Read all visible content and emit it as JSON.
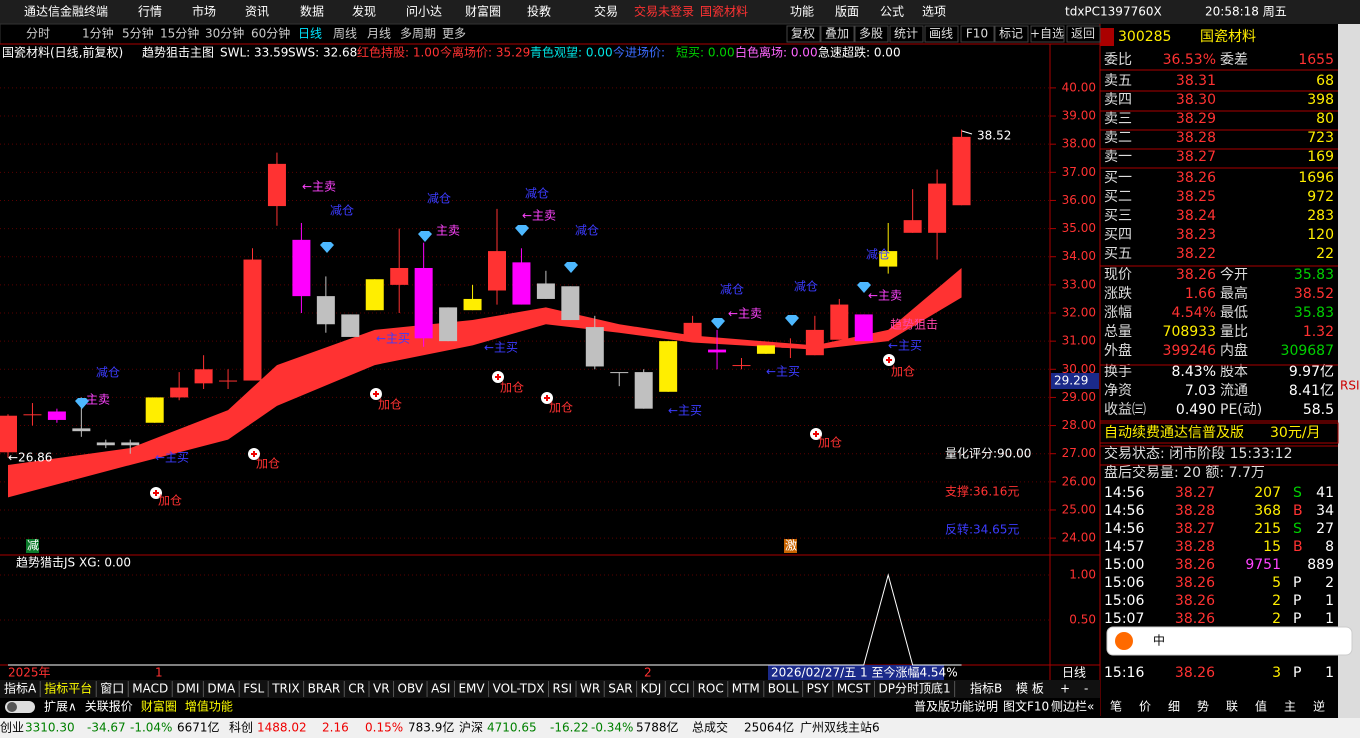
{
  "menubar": {
    "app": "通达信金融终端",
    "menus": [
      "行情",
      "市场",
      "资讯",
      "数据",
      "发现",
      "问小达",
      "财富圈",
      "投教",
      "交易"
    ],
    "alerts": [
      "交易未登录",
      "国瓷材料"
    ],
    "right": [
      "功能",
      "版面",
      "公式",
      "选项"
    ],
    "user": "tdxPC1397760X",
    "time": "20:58:18 周五"
  },
  "toolbar": {
    "periods": [
      "分时",
      "1分钟",
      "5分钟",
      "15分钟",
      "30分钟",
      "60分钟",
      "日线",
      "周线",
      "月线",
      "多周期",
      "更多"
    ],
    "buttons": [
      "复权",
      "叠加",
      "多股",
      "统计",
      "画线",
      "F10",
      "标记",
      "+自选",
      "返回"
    ]
  },
  "chart_info": {
    "stock": "国瓷材料(日线,前复权)",
    "indicator": "趋势狙击主图",
    "items": [
      "SWL: 33.59",
      "SWS: 32.68",
      "红色持股: 1.00",
      "今离场价: 35.29",
      "青色观望: 0.00",
      "今进场价:",
      "短买: 0.00",
      "白色离场: 0.00",
      "急速超跌: 0.00"
    ]
  },
  "chart_data": {
    "type": "candlestick",
    "open": [
      27.05,
      28.4,
      28.2,
      27.9,
      27.4,
      27.4,
      28.1,
      29.0,
      29.5,
      29.6,
      29.6,
      35.8,
      34.6,
      32.6,
      31.95,
      32.1,
      33.0,
      33.6,
      32.2,
      32.1,
      32.8,
      33.8,
      33.05,
      32.95,
      31.5,
      29.9,
      29.9,
      29.2,
      31.0,
      30.6,
      30.15,
      30.55,
      30.8,
      30.5,
      31.05,
      31.0,
      33.65,
      34.85,
      34.85,
      35.83
    ],
    "high": [
      28.4,
      28.8,
      28.6,
      29.0,
      27.5,
      27.5,
      29.0,
      29.9,
      30.5,
      30.0,
      34.3,
      37.7,
      35.2,
      33.3,
      31.95,
      33.2,
      35.0,
      34.5,
      32.2,
      33.0,
      35.7,
      34.3,
      33.5,
      32.95,
      31.9,
      29.9,
      30.0,
      31.0,
      31.9,
      31.4,
      30.4,
      30.85,
      31.1,
      31.9,
      32.5,
      31.95,
      35.2,
      36.4,
      37.1,
      38.52
    ],
    "low": [
      26.86,
      28.0,
      28.1,
      27.6,
      27.2,
      27.0,
      28.1,
      28.9,
      29.3,
      29.3,
      29.6,
      35.1,
      32.0,
      31.3,
      31.15,
      32.1,
      32.0,
      30.8,
      31.0,
      32.1,
      32.3,
      32.3,
      32.5,
      31.75,
      30.0,
      29.4,
      28.6,
      29.2,
      31.0,
      30.0,
      30.0,
      30.55,
      30.4,
      30.5,
      31.05,
      31.0,
      33.4,
      34.85,
      33.9,
      35.83
    ],
    "close": [
      28.35,
      28.4,
      28.5,
      27.8,
      27.3,
      27.3,
      29.0,
      29.35,
      30.0,
      29.6,
      33.9,
      37.3,
      32.6,
      31.6,
      31.15,
      33.2,
      33.6,
      31.1,
      31.0,
      32.5,
      34.2,
      32.3,
      32.5,
      31.75,
      30.1,
      29.9,
      28.6,
      31.0,
      31.65,
      30.7,
      30.15,
      30.85,
      30.8,
      31.4,
      32.3,
      31.95,
      34.2,
      35.3,
      36.6,
      38.26
    ],
    "colors": [
      "#ff3232",
      "#ff3232",
      "#ff00ff",
      "#c0c0c0",
      "#c0c0c0",
      "#c0c0c0",
      "#ffee00",
      "#ff3232",
      "#ff3232",
      "#ff3232",
      "#ff3232",
      "#ff3232",
      "#ff00ff",
      "#c0c0c0",
      "#c0c0c0",
      "#ffee00",
      "#ff3232",
      "#ff00ff",
      "#c0c0c0",
      "#ffee00",
      "#ff3232",
      "#ff00ff",
      "#c0c0c0",
      "#c0c0c0",
      "#c0c0c0",
      "#c0c0c0",
      "#c0c0c0",
      "#ffee00",
      "#ff3232",
      "#ff00ff",
      "#ff3232",
      "#ffee00",
      "#ff3232",
      "#ff3232",
      "#ff3232",
      "#ff00ff",
      "#ffee00",
      "#ff3232",
      "#ff3232",
      "#ff3232"
    ],
    "band": {
      "color": "#ff3232",
      "x": [
        0,
        5,
        9,
        11,
        15,
        19,
        22,
        25,
        28,
        33,
        36,
        39
      ],
      "upper": [
        26.6,
        27.2,
        28.55,
        30.15,
        31.4,
        31.75,
        32.2,
        31.6,
        31.2,
        30.85,
        31.4,
        33.6
      ],
      "lower": [
        25.45,
        26.6,
        27.5,
        28.7,
        30.15,
        30.85,
        31.6,
        31.3,
        30.95,
        30.7,
        31.0,
        32.55
      ]
    },
    "ylim": [
      23.4,
      41.56
    ],
    "yticks": [
      {
        "value": 40,
        "label": "40.00"
      },
      {
        "value": 39,
        "label": "39.00"
      },
      {
        "value": 38,
        "label": "38.00"
      },
      {
        "value": 37,
        "label": "37.00"
      },
      {
        "value": 36,
        "label": "36.00"
      },
      {
        "value": 35,
        "label": "35.00"
      },
      {
        "value": 34,
        "label": "34.00"
      },
      {
        "value": 33,
        "label": "33.00"
      },
      {
        "value": 32,
        "label": "32.00"
      },
      {
        "value": 31,
        "label": "31.00"
      },
      {
        "value": 30,
        "label": "30.00"
      },
      {
        "value": 29,
        "label": "29.00"
      },
      {
        "value": 28,
        "label": "28.00"
      },
      {
        "value": 27,
        "label": "27.00"
      },
      {
        "value": 26,
        "label": "26.00"
      },
      {
        "value": 25,
        "label": "25.00"
      },
      {
        "value": 24,
        "label": "24.00"
      }
    ],
    "grid": true,
    "cursor_label": "29.29",
    "annotations": [
      "减仓",
      "主卖",
      "←主买",
      "加仓",
      "←26.86",
      "加仓",
      "←主卖",
      "减仓",
      "←主买",
      "加仓",
      "减仓",
      "主卖",
      "←主买",
      "加仓",
      "减仓",
      "←主卖",
      "减仓",
      "加仓",
      "←主买",
      "←主卖",
      "减仓",
      "←主买",
      "减仓",
      "加仓",
      "减仓",
      "←主卖",
      "←主买",
      "趋势狙击",
      "加仓",
      "38.52",
      "量化评分:90.00",
      "支撑:36.16元",
      "反转:34.65元"
    ],
    "flags": [
      "减",
      "激"
    ],
    "xlabels": [
      "2025年",
      "1",
      "2"
    ],
    "xinfo": "2026/02/27/五 1 至今涨幅4.54%",
    "period": "日线",
    "indicator": {
      "title": "趋势猎击JS XG: 0.00",
      "values": [
        0,
        0,
        0,
        0,
        0,
        0,
        0,
        0,
        0,
        0,
        0,
        0,
        0,
        0,
        0,
        0,
        0,
        0,
        0,
        0,
        0,
        0,
        0,
        0,
        0,
        0,
        0,
        0,
        0,
        0,
        0,
        0,
        0,
        0,
        0,
        0,
        1,
        0,
        0,
        0
      ],
      "ylim": [
        0,
        1.2
      ],
      "yticks": [
        {
          "value": 1,
          "label": "1.00"
        },
        {
          "value": 0.5,
          "label": "0.50"
        }
      ]
    }
  },
  "quote": {
    "code": "300285",
    "name": "国瓷材料",
    "ratio": [
      "委比",
      "36.53%",
      "委差",
      "1655"
    ],
    "asks": [
      [
        "卖五",
        "38.31",
        "68"
      ],
      [
        "卖四",
        "38.30",
        "398"
      ],
      [
        "卖三",
        "38.29",
        "80"
      ],
      [
        "卖二",
        "38.28",
        "723"
      ],
      [
        "卖一",
        "38.27",
        "169"
      ]
    ],
    "bids": [
      [
        "买一",
        "38.26",
        "1696"
      ],
      [
        "买二",
        "38.25",
        "972"
      ],
      [
        "买三",
        "38.24",
        "283"
      ],
      [
        "买四",
        "38.23",
        "120"
      ],
      [
        "买五",
        "38.22",
        "22"
      ]
    ],
    "stats": [
      [
        "现价",
        "38.26",
        "今开",
        "35.83"
      ],
      [
        "涨跌",
        "1.66",
        "最高",
        "38.52"
      ],
      [
        "涨幅",
        "4.54%",
        "最低",
        "35.83"
      ],
      [
        "总量",
        "708933",
        "量比",
        "1.32"
      ],
      [
        "外盘",
        "399246",
        "内盘",
        "309687"
      ],
      [
        "换手",
        "8.43%",
        "股本",
        "9.97亿"
      ],
      [
        "净资",
        "7.03",
        "流通",
        "8.41亿"
      ],
      [
        "收益㈢",
        "0.490",
        "PE(动)",
        "58.5"
      ]
    ],
    "ad": [
      "自动续费通达信普及版",
      "30元/月"
    ],
    "status": "交易状态: 闭市阶段 15:33:12",
    "after": "盘后交易量: 20  额: 7.7万",
    "ticks": [
      [
        "14:56",
        "38.27",
        "207",
        "S",
        "41"
      ],
      [
        "14:56",
        "38.28",
        "368",
        "B",
        "34"
      ],
      [
        "14:56",
        "38.27",
        "215",
        "S",
        "27"
      ],
      [
        "14:57",
        "38.28",
        "15",
        "B",
        "8"
      ],
      [
        "15:00",
        "38.26",
        "9751",
        "",
        "889"
      ],
      [
        "15:06",
        "38.26",
        "5",
        "P",
        "2"
      ],
      [
        "15:06",
        "38.26",
        "2",
        "P",
        "1"
      ],
      [
        "15:07",
        "38.26",
        "2",
        "P",
        "1"
      ],
      [
        "15:16",
        "38.26",
        "3",
        "P",
        "1"
      ]
    ],
    "tabs": [
      "笔",
      "价",
      "细",
      "势",
      "联",
      "值",
      "主",
      "逆"
    ]
  },
  "sidebar": {
    "label": "RSI"
  },
  "ime": {
    "label": "中"
  },
  "bottom": {
    "row1": [
      "指标A",
      "指标平台",
      "窗口",
      "MACD",
      "DMI",
      "DMA",
      "FSL",
      "TRIX",
      "BRAR",
      "CR",
      "VR",
      "OBV",
      "ASI",
      "EMV",
      "VOL-TDX",
      "RSI",
      "WR",
      "SAR",
      "KDJ",
      "CCI",
      "ROC",
      "MTM",
      "BOLL",
      "PSY",
      "MCST",
      "DP分时顶底1"
    ],
    "row1_right": [
      "指标B",
      "模 板",
      "+",
      "-"
    ],
    "row2": [
      "扩展∧",
      "关联报价",
      "财富圈",
      "增值功能"
    ],
    "row2_right": [
      "普及版功能说明",
      "图文F10",
      "侧边栏«"
    ]
  },
  "statusbar": [
    "创业",
    "3310.30",
    "-34.67",
    "-1.04%",
    "6671亿",
    "科创",
    "1488.02",
    "2.16",
    "0.15%",
    "783.9亿",
    "沪深",
    "4710.65",
    "-16.22",
    "-0.34%",
    "5788亿",
    "总成交",
    "25064亿",
    "广州双线主站6"
  ]
}
